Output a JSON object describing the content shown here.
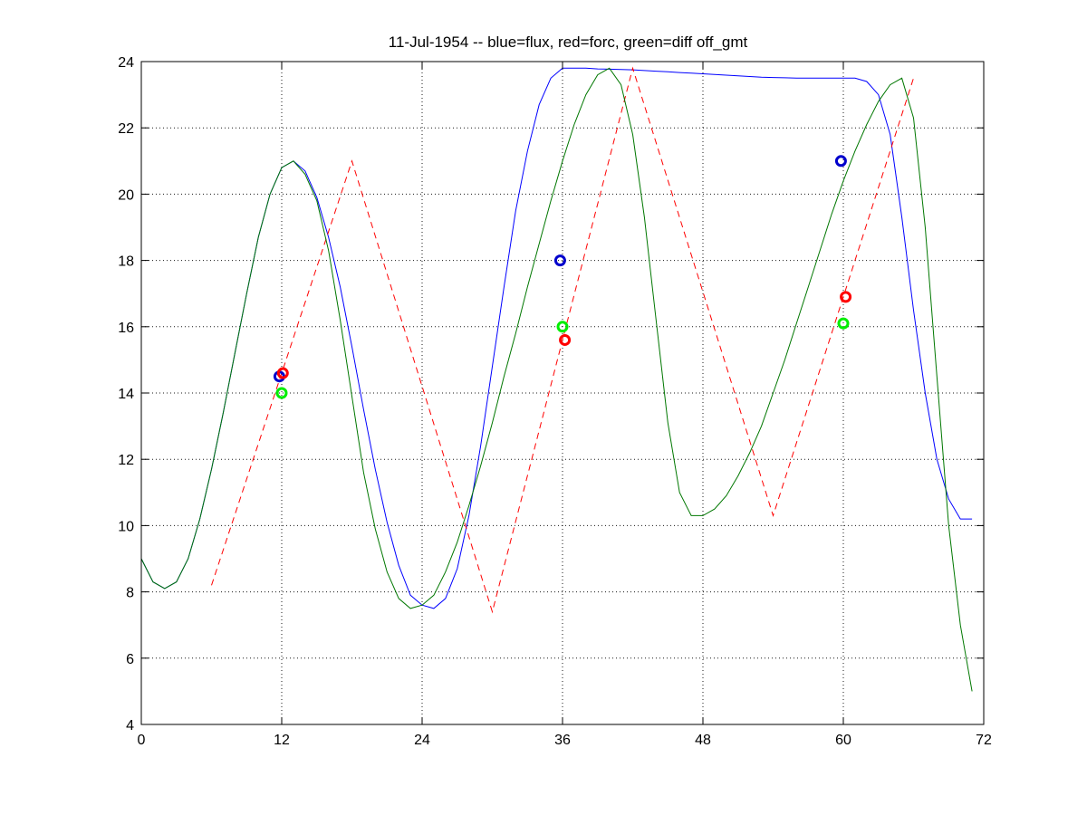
{
  "chart_data": {
    "type": "line",
    "title": "11-Jul-1954 -- blue=flux, red=forc, green=diff off_gmt",
    "xlabel": "",
    "ylabel": "",
    "xlim": [
      0,
      72
    ],
    "ylim": [
      4,
      24
    ],
    "xticks": [
      0,
      12,
      24,
      36,
      48,
      60,
      72
    ],
    "yticks": [
      4,
      6,
      8,
      10,
      12,
      14,
      16,
      18,
      20,
      22,
      24
    ],
    "grid": true,
    "series": [
      {
        "color": "#0000ff",
        "style": "solid",
        "x": [
          0,
          1,
          2,
          3,
          4,
          5,
          6,
          7,
          8,
          9,
          10,
          11,
          12,
          13,
          14,
          15,
          16,
          17,
          18,
          19,
          20,
          21,
          22,
          23,
          24,
          25,
          26,
          27,
          28,
          29,
          30,
          31,
          32,
          33,
          34,
          35,
          36,
          37,
          38,
          39,
          40,
          41,
          42,
          43,
          44,
          45,
          46,
          47,
          48,
          49,
          50,
          51,
          52,
          53,
          54,
          55,
          56,
          57,
          58,
          59,
          60,
          61,
          62,
          63,
          64,
          65,
          66,
          67,
          68,
          69,
          70,
          71
        ],
        "y": [
          9.0,
          8.3,
          8.1,
          8.3,
          9.0,
          10.2,
          11.7,
          13.4,
          15.2,
          17.0,
          18.7,
          20.0,
          20.8,
          21.0,
          20.7,
          19.9,
          18.7,
          17.2,
          15.4,
          13.5,
          11.7,
          10.1,
          8.8,
          7.9,
          7.6,
          7.5,
          7.8,
          8.7,
          10.3,
          12.4,
          14.8,
          17.2,
          19.5,
          21.3,
          22.7,
          23.5,
          23.8,
          23.8,
          23.8,
          23.78,
          23.77,
          23.76,
          23.75,
          23.73,
          23.71,
          23.69,
          23.67,
          23.65,
          23.63,
          23.61,
          23.59,
          23.57,
          23.55,
          23.53,
          23.52,
          23.51,
          23.5,
          23.5,
          23.5,
          23.5,
          23.5,
          23.5,
          23.4,
          23.0,
          21.8,
          19.3,
          16.5,
          14.0,
          12.0,
          10.8,
          10.2,
          10.2
        ]
      },
      {
        "color": "#ff0000",
        "style": "dashed",
        "x": [
          6,
          18,
          30,
          42,
          54,
          66
        ],
        "y": [
          8.2,
          21.0,
          7.4,
          23.8,
          10.3,
          23.5
        ]
      },
      {
        "color": "#007700",
        "style": "solid",
        "x": [
          0,
          1,
          2,
          3,
          4,
          5,
          6,
          7,
          8,
          9,
          10,
          11,
          12,
          13,
          14,
          15,
          16,
          17,
          18,
          19,
          20,
          21,
          22,
          23,
          24,
          25,
          26,
          27,
          28,
          29,
          30,
          31,
          32,
          33,
          34,
          35,
          36,
          37,
          38,
          39,
          40,
          41,
          42,
          43,
          44,
          45,
          46,
          47,
          48,
          49,
          50,
          51,
          52,
          53,
          54,
          55,
          56,
          57,
          58,
          59,
          60,
          61,
          62,
          63,
          64,
          65,
          66,
          67,
          68,
          69,
          70,
          71
        ],
        "y": [
          9.0,
          8.3,
          8.1,
          8.3,
          9.0,
          10.2,
          11.7,
          13.4,
          15.2,
          17.0,
          18.7,
          20.0,
          20.8,
          21.0,
          20.6,
          19.8,
          18.3,
          16.2,
          13.9,
          11.6,
          9.9,
          8.6,
          7.8,
          7.5,
          7.6,
          7.9,
          8.6,
          9.5,
          10.6,
          11.8,
          13.1,
          14.5,
          15.8,
          17.2,
          18.5,
          19.8,
          21.0,
          22.1,
          23.0,
          23.6,
          23.8,
          23.3,
          21.8,
          19.3,
          16.2,
          13.1,
          11.0,
          10.3,
          10.3,
          10.5,
          10.9,
          11.5,
          12.2,
          13.0,
          14.0,
          15.0,
          16.1,
          17.2,
          18.3,
          19.4,
          20.4,
          21.3,
          22.1,
          22.8,
          23.3,
          23.5,
          22.3,
          19.0,
          14.5,
          10.0,
          7.0,
          5.0
        ]
      }
    ],
    "markers": [
      {
        "color": "#0000cc",
        "x": 11.8,
        "y": 14.5
      },
      {
        "color": "#ff0000",
        "x": 12.1,
        "y": 14.6
      },
      {
        "color": "#00ee00",
        "x": 12.0,
        "y": 14.0
      },
      {
        "color": "#0000cc",
        "x": 35.8,
        "y": 18.0
      },
      {
        "color": "#00ee00",
        "x": 36.0,
        "y": 16.0
      },
      {
        "color": "#ff0000",
        "x": 36.2,
        "y": 15.6
      },
      {
        "color": "#0000cc",
        "x": 59.8,
        "y": 21.0
      },
      {
        "color": "#ff0000",
        "x": 60.2,
        "y": 16.9
      },
      {
        "color": "#00ee00",
        "x": 60.0,
        "y": 16.1
      }
    ]
  }
}
